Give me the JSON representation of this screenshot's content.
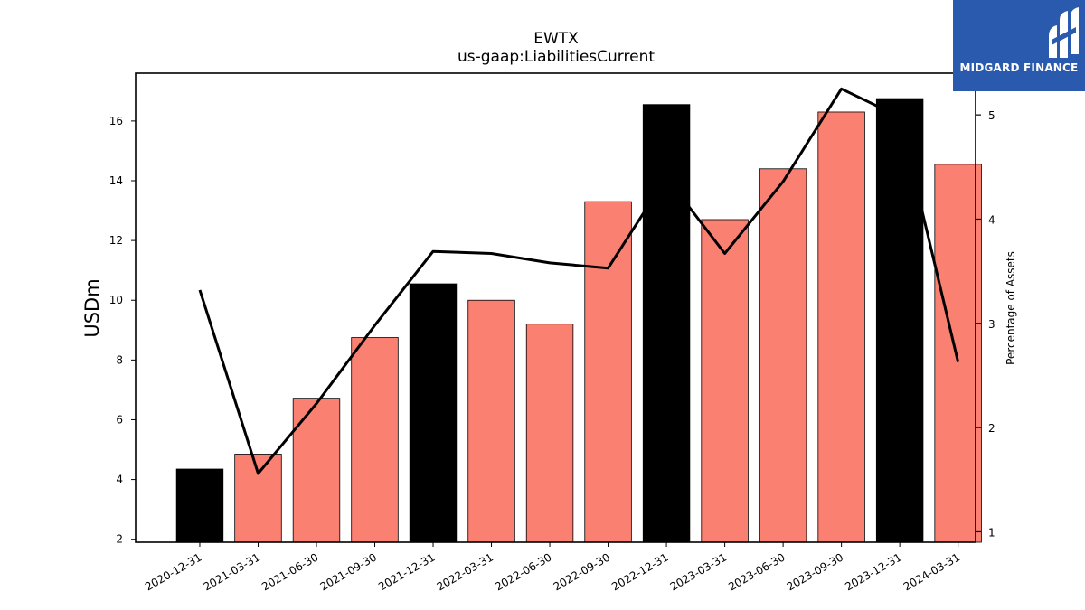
{
  "chart_data": {
    "type": "bar",
    "title": "EWTX",
    "subtitle": "us-gaap:LiabilitiesCurrent",
    "ylabel": "USDm",
    "y2label": "Percentage of Assets",
    "ylim": [
      1.9,
      17.6
    ],
    "y2lim": [
      0.9,
      5.4
    ],
    "yticks": [
      2,
      4,
      6,
      8,
      10,
      12,
      14,
      16
    ],
    "y2ticks": [
      1,
      2,
      3,
      4,
      5
    ],
    "categories": [
      "2020-12-31",
      "2021-03-31",
      "2021-06-30",
      "2021-09-30",
      "2021-12-31",
      "2022-03-31",
      "2022-06-30",
      "2022-09-30",
      "2022-12-31",
      "2023-03-31",
      "2023-06-30",
      "2023-09-30",
      "2023-12-31",
      "2024-03-31"
    ],
    "series": [
      {
        "type": "bar",
        "values": [
          4.35,
          4.85,
          6.72,
          8.75,
          10.55,
          10.0,
          9.2,
          13.3,
          16.55,
          12.7,
          14.4,
          16.3,
          16.75,
          14.55
        ]
      },
      {
        "type": "line",
        "axis": "secondary",
        "values": [
          3.32,
          1.56,
          2.23,
          2.98,
          3.69,
          3.67,
          3.58,
          3.53,
          4.4,
          3.67,
          4.36,
          5.25,
          4.98,
          2.63
        ]
      }
    ],
    "bar_colors": [
      "#000000",
      "#fa8072",
      "#fa8072",
      "#fa8072",
      "#000000",
      "#fa8072",
      "#fa8072",
      "#fa8072",
      "#000000",
      "#fa8072",
      "#fa8072",
      "#fa8072",
      "#000000",
      "#fa8072"
    ],
    "line_color": "#000000",
    "grid": false,
    "legend": "none"
  },
  "logo": {
    "text": "MIDGARD FINANCE",
    "background": "#2a5aad"
  }
}
